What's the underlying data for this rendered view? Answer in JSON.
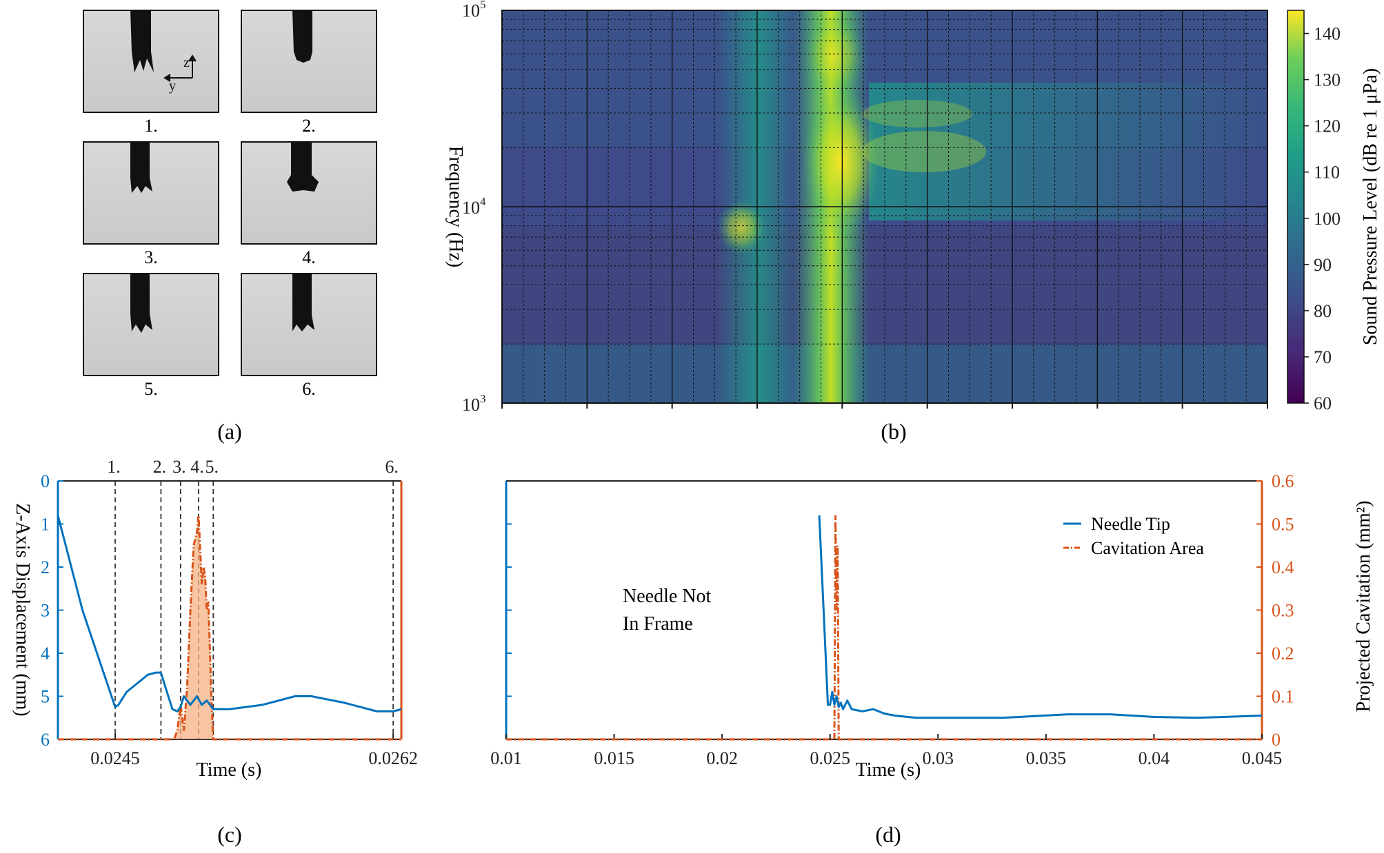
{
  "panel_labels": [
    "(a)",
    "(b)",
    "(c)",
    "(d)"
  ],
  "chart_data": [
    {
      "panel": "(a)",
      "type": "image-grid",
      "frame_labels": [
        "1.",
        "2.",
        "3.",
        "4.",
        "5.",
        "6."
      ],
      "axis_labels": {
        "vertical": "z",
        "horizontal": "y"
      }
    },
    {
      "panel": "(b)",
      "type": "heatmap",
      "title": "",
      "xlabel": "",
      "ylabel": "Frequency (Hz)",
      "ylim": [
        1000,
        100000
      ],
      "y_scale": "log",
      "y_ticks": [
        {
          "value": 1000,
          "base": "10",
          "exp": "3"
        },
        {
          "value": 10000,
          "base": "10",
          "exp": "4"
        },
        {
          "value": 100000,
          "base": "10",
          "exp": "5"
        }
      ],
      "colorbar": {
        "label": "Sound Pressure Level (dB re 1 μPa)",
        "range": [
          60,
          145
        ],
        "ticks": [
          60,
          70,
          80,
          90,
          100,
          110,
          120,
          130,
          140
        ],
        "colormap": "viridis"
      },
      "grid": true
    },
    {
      "panel": "(c)",
      "type": "line",
      "xlabel": "Time (s)",
      "ylabel": "Z-Axis Displacement (mm)",
      "x_ticks": [
        "0.0245",
        "0.0262"
      ],
      "x_tick_values": [
        0.0245,
        0.0262
      ],
      "xlim": [
        0.02415,
        0.02625
      ],
      "ylim": [
        0,
        6
      ],
      "y_reversed": true,
      "y_ticks": [
        0,
        1,
        2,
        3,
        4,
        5,
        6
      ],
      "y2lim": [
        0,
        0.6
      ],
      "frame_markers": [
        {
          "label": "1.",
          "x": 0.0245
        },
        {
          "label": "2.",
          "x": 0.02478
        },
        {
          "label": "3.",
          "x": 0.0249
        },
        {
          "label": "4.",
          "x": 0.02501
        },
        {
          "label": "5.",
          "x": 0.0251
        },
        {
          "label": "6.",
          "x": 0.0262
        }
      ],
      "series": [
        {
          "color": "#0072BD",
          "axis": "left",
          "x": [
            0.02415,
            0.0243,
            0.0245,
            0.02452,
            0.02457,
            0.0247,
            0.02475,
            0.02478,
            0.0248,
            0.02485,
            0.02488,
            0.0249,
            0.02492,
            0.02496,
            0.025,
            0.02503,
            0.02506,
            0.0251,
            0.0252,
            0.0254,
            0.0255,
            0.0256,
            0.0257,
            0.0259,
            0.0261,
            0.0262,
            0.02625
          ],
          "values": [
            0.8,
            3.0,
            5.25,
            5.2,
            4.9,
            4.5,
            4.45,
            4.45,
            4.7,
            5.3,
            5.35,
            5.25,
            5.0,
            5.2,
            5.0,
            5.2,
            5.1,
            5.3,
            5.3,
            5.2,
            5.1,
            5.0,
            5.0,
            5.15,
            5.35,
            5.35,
            5.3
          ]
        },
        {
          "color": "#D95319",
          "axis": "right",
          "fill": true,
          "x": [
            0.02415,
            0.02486,
            0.02488,
            0.0249,
            0.02492,
            0.02494,
            0.02496,
            0.02498,
            0.025,
            0.02501,
            0.02502,
            0.02503,
            0.02504,
            0.02505,
            0.02506,
            0.02507,
            0.02508,
            0.02509,
            0.0251,
            0.0252,
            0.02625
          ],
          "values": [
            0,
            0,
            0.02,
            0.08,
            0.02,
            0.12,
            0.3,
            0.45,
            0.48,
            0.52,
            0.44,
            0.36,
            0.4,
            0.38,
            0.3,
            0.32,
            0.2,
            0.08,
            0,
            0,
            0
          ]
        }
      ]
    },
    {
      "panel": "(d)",
      "type": "line",
      "xlabel": "Time (s)",
      "ylabel": "",
      "y2label": "Projected Cavitation (mm²)",
      "xlim": [
        0.01,
        0.045
      ],
      "x_ticks": [
        "0.01",
        "0.015",
        "0.02",
        "0.025",
        "0.03",
        "0.035",
        "0.04",
        "0.045"
      ],
      "ylim": [
        0,
        6
      ],
      "y_reversed": true,
      "y2lim": [
        0,
        0.6
      ],
      "y2_ticks": [
        "0",
        "0.1",
        "0.2",
        "0.3",
        "0.4",
        "0.5",
        "0.6"
      ],
      "annotation": [
        "Needle Not",
        "In Frame"
      ],
      "legend": {
        "placement": "top-right",
        "entries": [
          "Needle Tip",
          "Cavitation Area"
        ]
      },
      "series": [
        {
          "name": "Needle Tip",
          "color": "#0072BD",
          "axis": "left",
          "x": [
            0.0245,
            0.0249,
            0.025,
            0.0251,
            0.0252,
            0.0253,
            0.0254,
            0.0255,
            0.0256,
            0.0258,
            0.026,
            0.0265,
            0.027,
            0.0275,
            0.028,
            0.029,
            0.03,
            0.033,
            0.036,
            0.038,
            0.04,
            0.042,
            0.045
          ],
          "values": [
            0.8,
            5.2,
            5.2,
            4.9,
            5.2,
            5.0,
            5.25,
            5.15,
            5.3,
            5.1,
            5.3,
            5.35,
            5.3,
            5.4,
            5.45,
            5.5,
            5.5,
            5.5,
            5.42,
            5.42,
            5.48,
            5.5,
            5.45
          ]
        },
        {
          "name": "Cavitation Area",
          "color": "#D95319",
          "axis": "right",
          "x": [
            0.01,
            0.0252,
            0.02525,
            0.0253,
            0.02535,
            0.0254,
            0.045
          ],
          "values": [
            0,
            0,
            0.52,
            0.3,
            0.45,
            0,
            0
          ]
        }
      ]
    }
  ]
}
